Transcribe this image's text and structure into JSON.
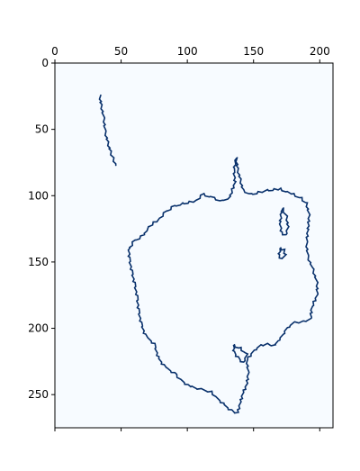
{
  "chart_data": {
    "type": "heatmap",
    "title": "",
    "xlabel": "",
    "ylabel": "",
    "image_width": 210,
    "image_height": 275,
    "x_ticks_position": "top",
    "x_ticks": [
      0,
      50,
      100,
      150,
      200
    ],
    "y_ticks": [
      0,
      50,
      100,
      150,
      200,
      250
    ],
    "colormap": {
      "low": "#f7fbff",
      "high": "#08306b"
    },
    "grid": false,
    "contours": [
      {
        "name": "stroke",
        "points": [
          [
            34,
            25
          ],
          [
            35,
            32
          ],
          [
            37,
            42
          ],
          [
            38,
            52
          ],
          [
            40,
            60
          ],
          [
            42,
            67
          ],
          [
            44,
            72
          ],
          [
            46,
            77
          ]
        ]
      },
      {
        "name": "outline",
        "points": [
          [
            137,
            72
          ],
          [
            138,
            80
          ],
          [
            140,
            88
          ],
          [
            142,
            96
          ],
          [
            148,
            99
          ],
          [
            160,
            96
          ],
          [
            170,
            95
          ],
          [
            180,
            99
          ],
          [
            186,
            102
          ],
          [
            190,
            106
          ],
          [
            192,
            115
          ],
          [
            191,
            126
          ],
          [
            190,
            136
          ],
          [
            191,
            146
          ],
          [
            195,
            156
          ],
          [
            198,
            166
          ],
          [
            198,
            175
          ],
          [
            194,
            184
          ],
          [
            193,
            193
          ],
          [
            187,
            195
          ],
          [
            180,
            196
          ],
          [
            175,
            200
          ],
          [
            172,
            205
          ],
          [
            168,
            210
          ],
          [
            166,
            213
          ],
          [
            160,
            212
          ],
          [
            155,
            213
          ],
          [
            150,
            217
          ],
          [
            145,
            224
          ],
          [
            146,
            234
          ],
          [
            145,
            242
          ],
          [
            142,
            249
          ],
          [
            140,
            256
          ],
          [
            138,
            264
          ],
          [
            133,
            262
          ],
          [
            127,
            257
          ],
          [
            118,
            248
          ],
          [
            110,
            246
          ],
          [
            100,
            243
          ],
          [
            90,
            234
          ],
          [
            82,
            228
          ],
          [
            78,
            222
          ],
          [
            75,
            212
          ],
          [
            68,
            205
          ],
          [
            65,
            196
          ],
          [
            63,
            186
          ],
          [
            62,
            176
          ],
          [
            60,
            166
          ],
          [
            58,
            157
          ],
          [
            56,
            147
          ],
          [
            56,
            140
          ],
          [
            60,
            134
          ],
          [
            67,
            130
          ],
          [
            70,
            124
          ],
          [
            78,
            118
          ],
          [
            84,
            112
          ],
          [
            90,
            108
          ],
          [
            96,
            106
          ],
          [
            106,
            104
          ],
          [
            112,
            99
          ],
          [
            120,
            102
          ],
          [
            126,
            104
          ],
          [
            132,
            101
          ],
          [
            136,
            90
          ],
          [
            135,
            80
          ],
          [
            137,
            72
          ]
        ]
      },
      {
        "name": "blob-upper",
        "points": [
          [
            172,
            110
          ],
          [
            175,
            116
          ],
          [
            176,
            124
          ],
          [
            174,
            130
          ],
          [
            171,
            128
          ],
          [
            170,
            120
          ],
          [
            171,
            113
          ],
          [
            172,
            110
          ]
        ]
      },
      {
        "name": "blob-lower",
        "points": [
          [
            170,
            140
          ],
          [
            173,
            141
          ],
          [
            174,
            145
          ],
          [
            171,
            148
          ],
          [
            169,
            145
          ],
          [
            170,
            140
          ]
        ]
      },
      {
        "name": "blob-bottom",
        "points": [
          [
            135,
            213
          ],
          [
            140,
            215
          ],
          [
            145,
            220
          ],
          [
            142,
            226
          ],
          [
            138,
            222
          ],
          [
            135,
            218
          ],
          [
            135,
            213
          ]
        ]
      }
    ]
  }
}
